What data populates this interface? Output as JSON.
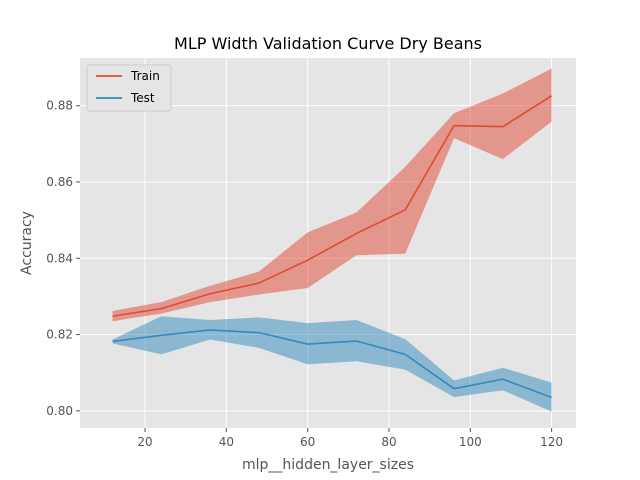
{
  "chart_data": {
    "type": "line",
    "title": "MLP Width Validation Curve Dry Beans",
    "xlabel": "mlp__hidden_layer_sizes",
    "ylabel": "Accuracy",
    "xlim": [
      4,
      126
    ],
    "ylim": [
      0.7955,
      0.8925
    ],
    "xticks": [
      20,
      40,
      60,
      80,
      100,
      120
    ],
    "yticks": [
      0.8,
      0.82,
      0.84,
      0.86,
      0.88
    ],
    "ytick_labels": [
      "0.80",
      "0.82",
      "0.84",
      "0.86",
      "0.88"
    ],
    "grid": true,
    "legend_position": "top-left",
    "x": [
      12,
      24,
      36,
      48,
      60,
      72,
      84,
      96,
      108,
      120
    ],
    "series": [
      {
        "name": "Train",
        "color": "#E24A33",
        "mean": [
          0.8248,
          0.8268,
          0.8307,
          0.8335,
          0.8395,
          0.8465,
          0.8527,
          0.8748,
          0.8745,
          0.8826
        ],
        "upper": [
          0.8262,
          0.8285,
          0.8328,
          0.8365,
          0.8468,
          0.852,
          0.864,
          0.878,
          0.8832,
          0.8897
        ],
        "lower": [
          0.8235,
          0.8255,
          0.8285,
          0.8305,
          0.8322,
          0.8408,
          0.8412,
          0.8715,
          0.866,
          0.8758
        ]
      },
      {
        "name": "Test",
        "color": "#348ABD",
        "mean": [
          0.8182,
          0.8198,
          0.8212,
          0.8205,
          0.8175,
          0.8183,
          0.8148,
          0.8058,
          0.8083,
          0.8035
        ],
        "upper": [
          0.8187,
          0.8248,
          0.8238,
          0.8245,
          0.823,
          0.8238,
          0.8188,
          0.808,
          0.8113,
          0.8074
        ],
        "lower": [
          0.8177,
          0.8148,
          0.8187,
          0.8165,
          0.8122,
          0.813,
          0.8108,
          0.8036,
          0.8054,
          0.7998
        ]
      }
    ]
  }
}
